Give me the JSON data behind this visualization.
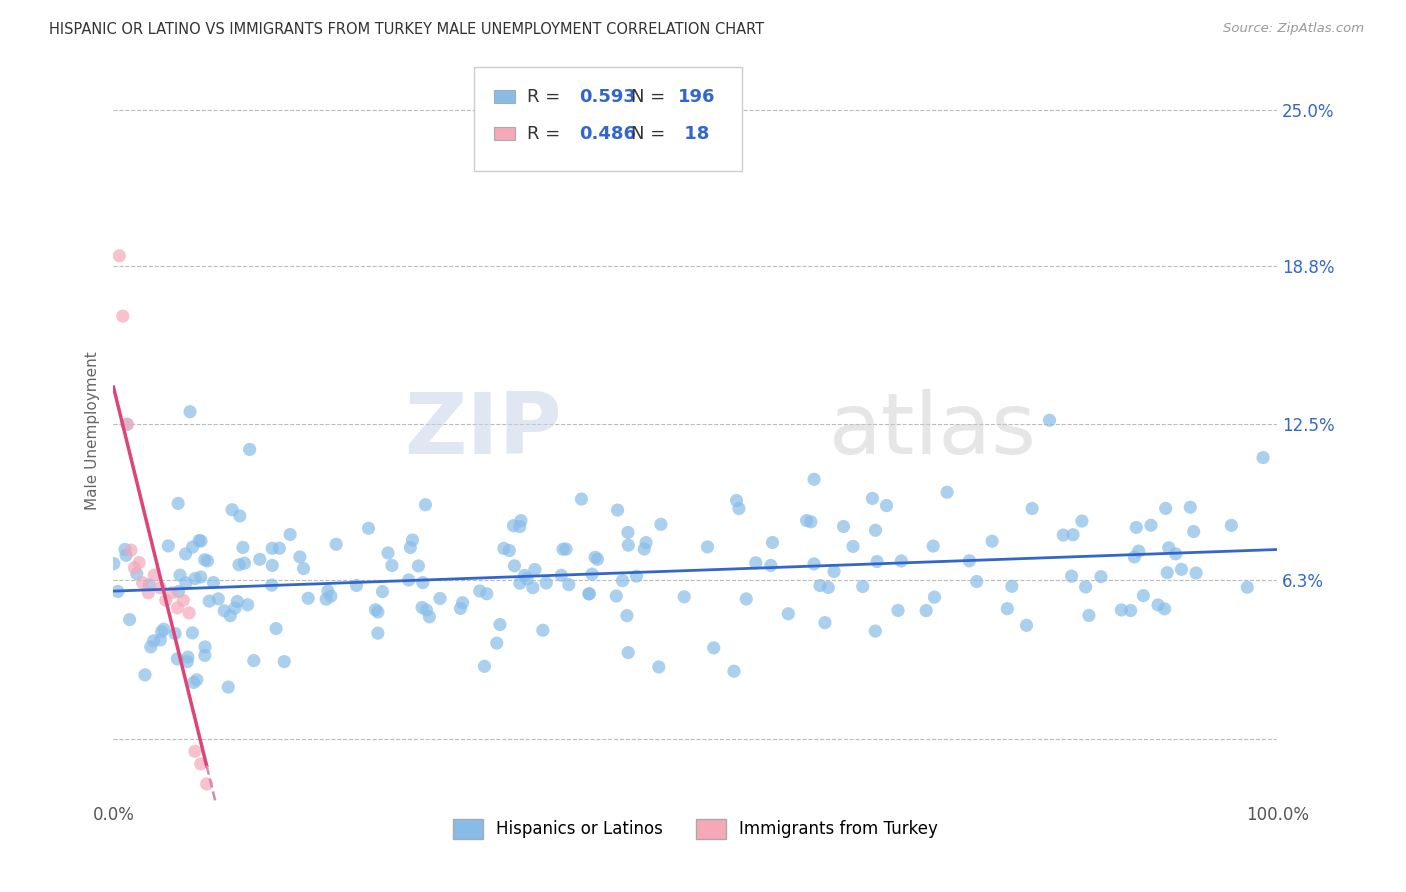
{
  "title": "HISPANIC OR LATINO VS IMMIGRANTS FROM TURKEY MALE UNEMPLOYMENT CORRELATION CHART",
  "source": "Source: ZipAtlas.com",
  "ylabel": "Male Unemployment",
  "xlim": [
    0.0,
    1.0
  ],
  "ylim": [
    -0.025,
    0.27
  ],
  "yticks": [
    0.0,
    0.063,
    0.125,
    0.188,
    0.25
  ],
  "right_ytick_labels": [
    "25.0%",
    "18.8%",
    "12.5%",
    "6.3%"
  ],
  "right_ytick_values": [
    0.25,
    0.188,
    0.125,
    0.063
  ],
  "xtick_labels": [
    "0.0%",
    "100.0%"
  ],
  "blue_R": 0.593,
  "blue_N": 196,
  "pink_R": 0.486,
  "pink_N": 18,
  "blue_color": "#88bce8",
  "pink_color": "#f4a8b8",
  "blue_line_color": "#3366cc",
  "pink_line_color": "#dd4477",
  "pink_dash_color": "#dd88aa",
  "watermark_zip": "ZIP",
  "watermark_atlas": "atlas",
  "legend_blue_label": "Hispanics or Latinos",
  "legend_pink_label": "Immigrants from Turkey",
  "background_color": "#ffffff",
  "grid_color": "#bbbbbb",
  "title_color": "#333333",
  "axis_label_color": "#666666",
  "accent_color": "#3366cc"
}
